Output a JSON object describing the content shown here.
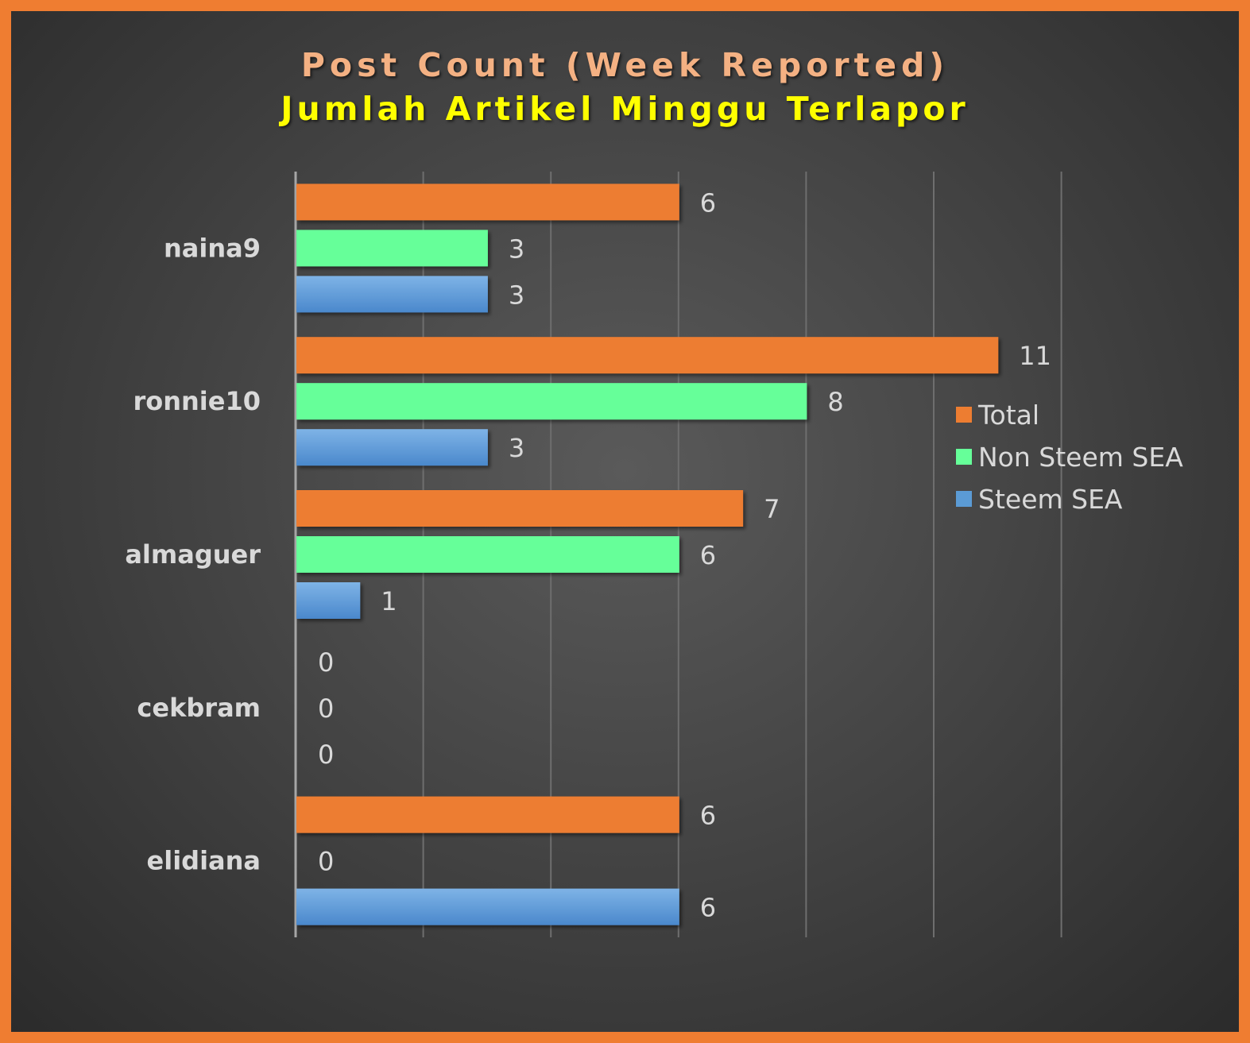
{
  "chart_data": {
    "type": "bar",
    "orientation": "horizontal",
    "title": "Post Count (Week Reported)",
    "subtitle": "Jumlah Artikel Minggu Terlapor",
    "categories": [
      "naina9",
      "ronnie10",
      "almaguer",
      "cekbram",
      "elidiana"
    ],
    "series": [
      {
        "name": "Total",
        "color": "#ed7d31",
        "values": [
          6,
          11,
          7,
          0,
          6
        ]
      },
      {
        "name": "Non Steem SEA",
        "color": "#66ff99",
        "values": [
          3,
          8,
          6,
          0,
          0
        ]
      },
      {
        "name": "Steem SEA",
        "color": "#5b9bd5",
        "values": [
          3,
          3,
          1,
          0,
          6
        ]
      }
    ],
    "xlim": [
      0,
      12
    ],
    "grid": true,
    "legend": "right",
    "data_labels": true
  }
}
